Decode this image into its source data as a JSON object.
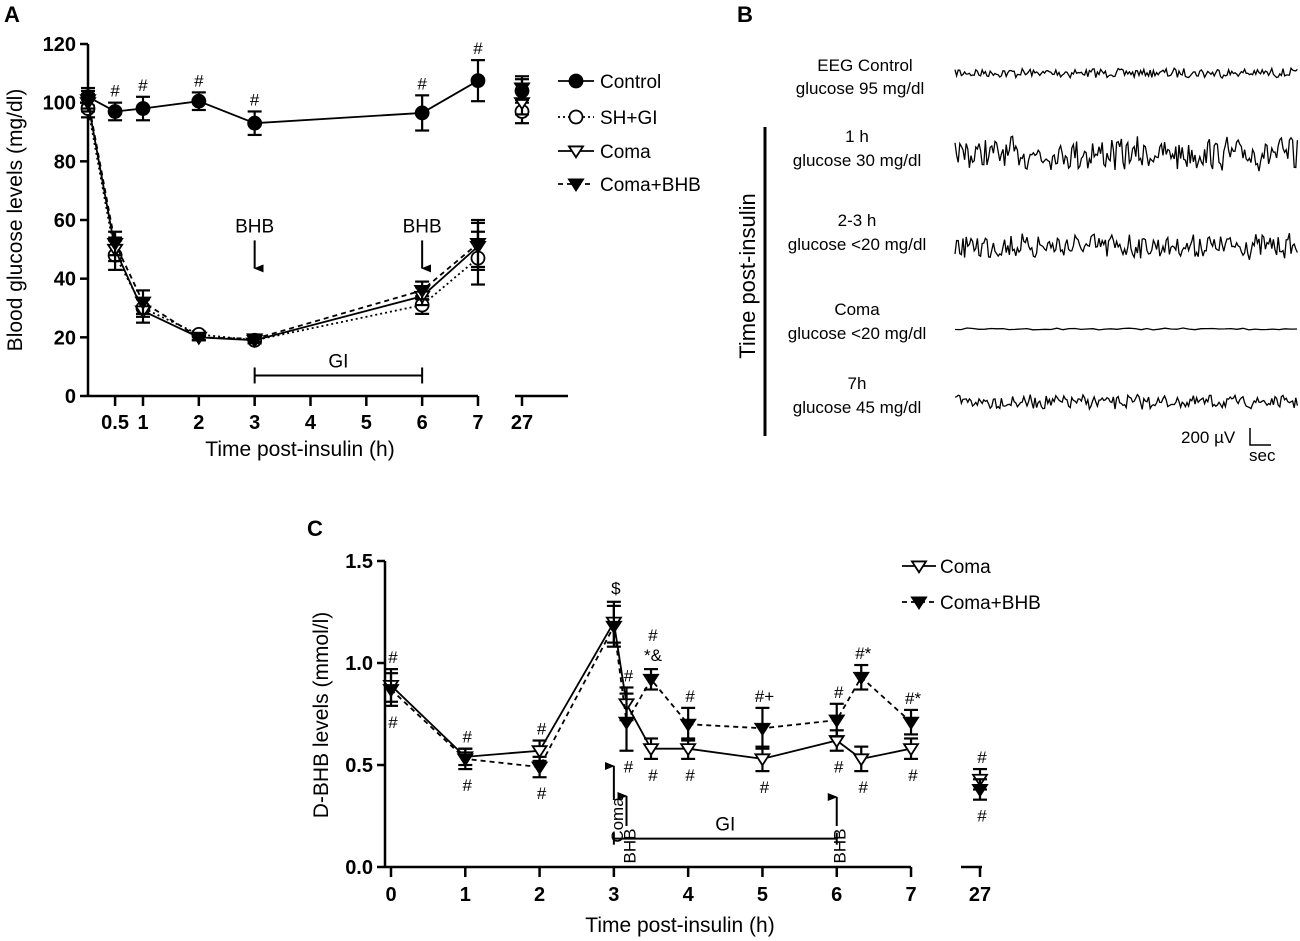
{
  "chart_data": [
    {
      "panel": "A",
      "type": "line",
      "xlabel": "Time post-insulin (h)",
      "ylabel": "Blood glucose levels (mg/dl)",
      "ylim": [
        0,
        120
      ],
      "yticks": [
        0,
        20,
        40,
        60,
        80,
        100,
        120
      ],
      "xtick_labels": [
        "0.5",
        "1",
        "2",
        "3",
        "4",
        "5",
        "6",
        "7",
        "27"
      ],
      "legend": [
        "Control",
        "SH+GI",
        "Coma",
        "Coma+BHB"
      ],
      "legend_position": "top-right",
      "series": [
        {
          "name": "Control",
          "marker": "filled-circle",
          "line": "solid",
          "x": [
            0,
            0.5,
            1,
            2,
            3,
            6,
            7,
            27
          ],
          "y": [
            102,
            97,
            98,
            100.5,
            93,
            96.5,
            107.5,
            104
          ],
          "err": [
            3,
            3,
            4,
            3,
            4,
            6,
            7,
            4
          ]
        },
        {
          "name": "SH+GI",
          "marker": "open-circle",
          "line": "dotted",
          "x": [
            0,
            0.5,
            1,
            2,
            3,
            6,
            7,
            27
          ],
          "y": [
            98,
            48,
            30,
            21,
            19,
            31,
            47,
            97
          ],
          "err": [
            3,
            5,
            3,
            1,
            1,
            3,
            9,
            4
          ]
        },
        {
          "name": "Coma",
          "marker": "open-down-triangle",
          "line": "solid",
          "x": [
            0,
            0.5,
            1,
            2,
            3,
            6,
            7,
            27
          ],
          "y": [
            100,
            50,
            29,
            20,
            19,
            34,
            51,
            100
          ],
          "err": [
            3,
            4,
            4,
            1,
            1,
            3,
            8,
            4
          ]
        },
        {
          "name": "Coma+BHB",
          "marker": "filled-down-triangle",
          "line": "dashed",
          "x": [
            0,
            0.5,
            1,
            2,
            3,
            6,
            7,
            27
          ],
          "y": [
            101,
            52,
            32,
            20,
            19.5,
            36,
            52,
            105
          ],
          "err": [
            3,
            4,
            4,
            1,
            1,
            3,
            8,
            4
          ]
        }
      ],
      "significance": [
        {
          "x": 0.5,
          "label": "#"
        },
        {
          "x": 1,
          "label": "#"
        },
        {
          "x": 2,
          "label": "#"
        },
        {
          "x": 3,
          "label": "#"
        },
        {
          "x": 6,
          "label": "#"
        },
        {
          "x": 7,
          "label": "#"
        }
      ],
      "annotations": [
        {
          "text": "BHB",
          "x": 3,
          "y_value": 51,
          "type": "down-arrow"
        },
        {
          "text": "BHB",
          "x": 6,
          "y_value": 51,
          "type": "down-arrow"
        },
        {
          "text": "GI",
          "type": "range-bar",
          "x_start": 3,
          "x_end": 6,
          "y_value": 7
        }
      ]
    },
    {
      "panel": "C",
      "type": "line",
      "xlabel": "Time post-insulin (h)",
      "ylabel": "D-BHB levels (mmol/l)",
      "ylim": [
        0,
        1.5
      ],
      "yticks": [
        "0.0",
        "0.5",
        "1.0",
        "1.5"
      ],
      "xtick_labels": [
        "0",
        "1",
        "2",
        "3",
        "4",
        "5",
        "6",
        "7",
        "27"
      ],
      "legend": [
        "Coma",
        "Coma+BHB"
      ],
      "legend_position": "top-right",
      "series": [
        {
          "name": "Coma",
          "marker": "open-down-triangle",
          "line": "solid",
          "x": [
            0,
            1,
            2,
            3,
            3.17,
            3.5,
            4,
            5,
            6,
            6.33,
            7,
            27
          ],
          "y": [
            0.89,
            0.54,
            0.57,
            1.2,
            0.8,
            0.58,
            0.58,
            0.53,
            0.62,
            0.53,
            0.58,
            0.43
          ],
          "err": [
            0.08,
            0.04,
            0.05,
            0.1,
            0.08,
            0.05,
            0.05,
            0.06,
            0.05,
            0.06,
            0.05,
            0.05
          ]
        },
        {
          "name": "Coma+BHB",
          "marker": "filled-down-triangle",
          "line": "dashed",
          "x": [
            0,
            1,
            2,
            3,
            3.17,
            3.5,
            4,
            5,
            6,
            6.33,
            7,
            27
          ],
          "y": [
            0.87,
            0.53,
            0.49,
            1.18,
            0.71,
            0.92,
            0.7,
            0.68,
            0.72,
            0.93,
            0.71,
            0.38
          ],
          "err": [
            0.08,
            0.05,
            0.05,
            0.1,
            0.14,
            0.05,
            0.08,
            0.1,
            0.08,
            0.06,
            0.06,
            0.05
          ]
        }
      ],
      "significance": [
        {
          "x": 0,
          "label": "#"
        },
        {
          "x": 0,
          "label": "#"
        },
        {
          "x": 1,
          "label": "#"
        },
        {
          "x": 1,
          "label": "#"
        },
        {
          "x": 2,
          "label": "#"
        },
        {
          "x": 2,
          "label": "#"
        },
        {
          "x": 3,
          "label": "$"
        },
        {
          "x": 3.17,
          "label": "#"
        },
        {
          "x": 3.17,
          "label": "#"
        },
        {
          "x": 3.5,
          "label": "#"
        },
        {
          "x": 3.5,
          "label": "*&"
        },
        {
          "x": 3.5,
          "label": "#"
        },
        {
          "x": 4,
          "label": "#"
        },
        {
          "x": 4,
          "label": "#"
        },
        {
          "x": 5,
          "label": "#+"
        },
        {
          "x": 5,
          "label": "#"
        },
        {
          "x": 6,
          "label": "#"
        },
        {
          "x": 6,
          "label": "#"
        },
        {
          "x": 6.33,
          "label": "#*"
        },
        {
          "x": 6.33,
          "label": "#"
        },
        {
          "x": 7,
          "label": "#*"
        },
        {
          "x": 7,
          "label": "#"
        },
        {
          "x": 27,
          "label": "#"
        },
        {
          "x": 27,
          "label": "#"
        }
      ],
      "annotations": [
        {
          "text": "Coma",
          "x": 3,
          "type": "up-arrow"
        },
        {
          "text": "BHB",
          "x": 3.17,
          "type": "up-arrow"
        },
        {
          "text": "BHB",
          "x": 6,
          "type": "up-arrow"
        },
        {
          "text": "GI",
          "type": "range-bar",
          "x_start": 3,
          "x_end": 6,
          "y_value": 0.08
        }
      ]
    }
  ],
  "panel_labels": {
    "a": "A",
    "b": "B",
    "c": "C"
  },
  "eeg": {
    "side_label": "Time post-insulin",
    "rows": [
      {
        "line1": "EEG Control",
        "line2": "glucose 95 mg/dl"
      },
      {
        "line1": "1 h",
        "line2": "glucose 30 mg/dl"
      },
      {
        "line1": "2-3 h",
        "line2": "glucose <20 mg/dl"
      },
      {
        "line1": "Coma",
        "line2": "glucose <20 mg/dl"
      },
      {
        "line1": "7h",
        "line2": "glucose 45 mg/dl"
      }
    ],
    "scale_amplitude": "200 µV",
    "scale_time": "sec"
  }
}
